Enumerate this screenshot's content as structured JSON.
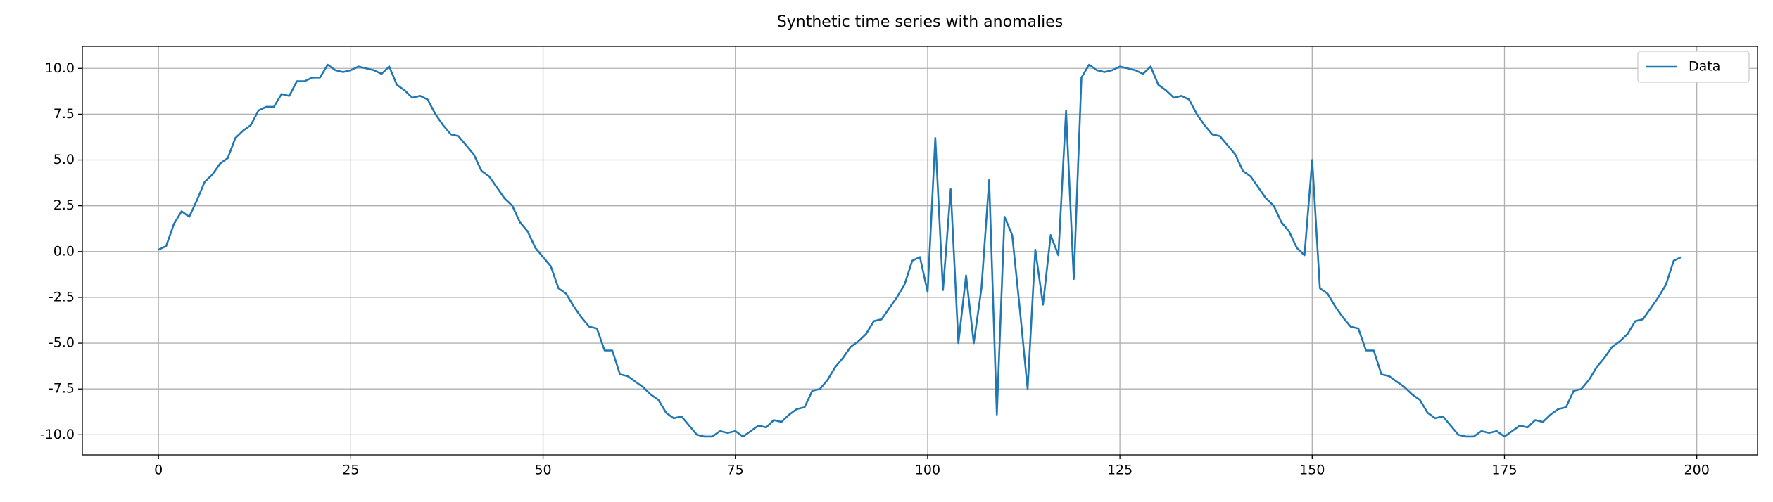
{
  "chart_data": {
    "type": "line",
    "title": "Synthetic time series with anomalies",
    "x": [
      0,
      1,
      2,
      3,
      4,
      5,
      6,
      7,
      8,
      9,
      10,
      11,
      12,
      13,
      14,
      15,
      16,
      17,
      18,
      19,
      20,
      21,
      22,
      23,
      24,
      25,
      26,
      27,
      28,
      29,
      30,
      31,
      32,
      33,
      34,
      35,
      36,
      37,
      38,
      39,
      40,
      41,
      42,
      43,
      44,
      45,
      46,
      47,
      48,
      49,
      50,
      51,
      52,
      53,
      54,
      55,
      56,
      57,
      58,
      59,
      60,
      61,
      62,
      63,
      64,
      65,
      66,
      67,
      68,
      69,
      70,
      71,
      72,
      73,
      74,
      75,
      76,
      77,
      78,
      79,
      80,
      81,
      82,
      83,
      84,
      85,
      86,
      87,
      88,
      89,
      90,
      91,
      92,
      93,
      94,
      95,
      96,
      97,
      98,
      99,
      100,
      101,
      102,
      103,
      104,
      105,
      106,
      107,
      108,
      109,
      110,
      111,
      112,
      113,
      114,
      115,
      116,
      117,
      118,
      119,
      120,
      121,
      122,
      123,
      124,
      125,
      126,
      127,
      128,
      129,
      130,
      131,
      132,
      133,
      134,
      135,
      136,
      137,
      138,
      139,
      140,
      141,
      142,
      143,
      144,
      145,
      146,
      147,
      148,
      149,
      150,
      151,
      152,
      153,
      154,
      155,
      156,
      157,
      158,
      159,
      160,
      161,
      162,
      163,
      164,
      165,
      166,
      167,
      168,
      169,
      170,
      171,
      172,
      173,
      174,
      175,
      176,
      177,
      178,
      179,
      180,
      181,
      182,
      183,
      184,
      185,
      186,
      187,
      188,
      189,
      190,
      191,
      192,
      193,
      194,
      195,
      196,
      197,
      198
    ],
    "series": [
      {
        "name": "Data",
        "color": "#1f77b4",
        "values": [
          0.1,
          0.3,
          1.5,
          2.2,
          1.9,
          2.8,
          3.8,
          4.2,
          4.8,
          5.1,
          6.2,
          6.6,
          6.9,
          7.7,
          7.9,
          7.9,
          8.6,
          8.5,
          9.3,
          9.3,
          9.5,
          9.5,
          10.2,
          9.9,
          9.8,
          9.9,
          10.1,
          10.0,
          9.9,
          9.7,
          10.1,
          9.1,
          8.8,
          8.4,
          8.5,
          8.3,
          7.5,
          6.9,
          6.4,
          6.3,
          5.8,
          5.3,
          4.4,
          4.1,
          3.5,
          2.9,
          2.5,
          1.6,
          1.1,
          0.2,
          -0.3,
          -0.8,
          -2.0,
          -2.3,
          -3.0,
          -3.6,
          -4.1,
          -4.2,
          -5.4,
          -5.4,
          -6.7,
          -6.8,
          -7.1,
          -7.4,
          -7.8,
          -8.1,
          -8.8,
          -9.1,
          -9.0,
          -9.5,
          -10.0,
          -10.1,
          -10.1,
          -9.8,
          -9.9,
          -9.8,
          -10.1,
          -9.8,
          -9.5,
          -9.6,
          -9.2,
          -9.3,
          -8.9,
          -8.6,
          -8.5,
          -7.6,
          -7.5,
          -7.0,
          -6.3,
          -5.8,
          -5.2,
          -4.9,
          -4.5,
          -3.8,
          -3.7,
          -3.1,
          -2.5,
          -1.8,
          -0.5,
          -0.3,
          -2.2,
          6.2,
          -2.1,
          3.4,
          -5.0,
          -1.3,
          -5.0,
          -2.0,
          3.9,
          -8.9,
          1.9,
          0.9,
          -3.2,
          -7.5,
          0.1,
          -2.9,
          0.9,
          -0.2,
          7.7,
          -1.5,
          9.5,
          10.2,
          9.9,
          9.8,
          9.9,
          10.1,
          10.0,
          9.9,
          9.7,
          10.1,
          9.1,
          8.8,
          8.4,
          8.5,
          8.3,
          7.5,
          6.9,
          6.4,
          6.3,
          5.8,
          5.3,
          4.4,
          4.1,
          3.5,
          2.9,
          2.5,
          1.6,
          1.1,
          0.2,
          -0.2,
          5.0,
          -2.0,
          -2.3,
          -3.0,
          -3.6,
          -4.1,
          -4.2,
          -5.4,
          -5.4,
          -6.7,
          -6.8,
          -7.1,
          -7.4,
          -7.8,
          -8.1,
          -8.8,
          -9.1,
          -9.0,
          -9.5,
          -10.0,
          -10.1,
          -10.1,
          -9.8,
          -9.9,
          -9.8,
          -10.1,
          -9.8,
          -9.5,
          -9.6,
          -9.2,
          -9.3,
          -8.9,
          -8.6,
          -8.5,
          -7.6,
          -7.5,
          -7.0,
          -6.3,
          -5.8,
          -5.2,
          -4.9,
          -4.5,
          -3.8,
          -3.7,
          -3.1,
          -2.5,
          -1.8,
          -0.5,
          -0.3
        ]
      }
    ],
    "xlim": [
      -9.9,
      207.9
    ],
    "xticks": [
      0,
      25,
      50,
      75,
      100,
      125,
      150,
      175,
      200
    ],
    "ylim": [
      -11.1,
      11.2
    ],
    "yticks": [
      {
        "value": -10,
        "label": "-10.0"
      },
      {
        "value": -7.5,
        "label": "-7.5"
      },
      {
        "value": -5,
        "label": "-5.0"
      },
      {
        "value": -2.5,
        "label": "-2.5"
      },
      {
        "value": 0,
        "label": "0.0"
      },
      {
        "value": 2.5,
        "label": "2.5"
      },
      {
        "value": 5,
        "label": "5.0"
      },
      {
        "value": 7.5,
        "label": "7.5"
      },
      {
        "value": 10,
        "label": "10.0"
      }
    ],
    "grid": true,
    "legend": "upper right"
  }
}
